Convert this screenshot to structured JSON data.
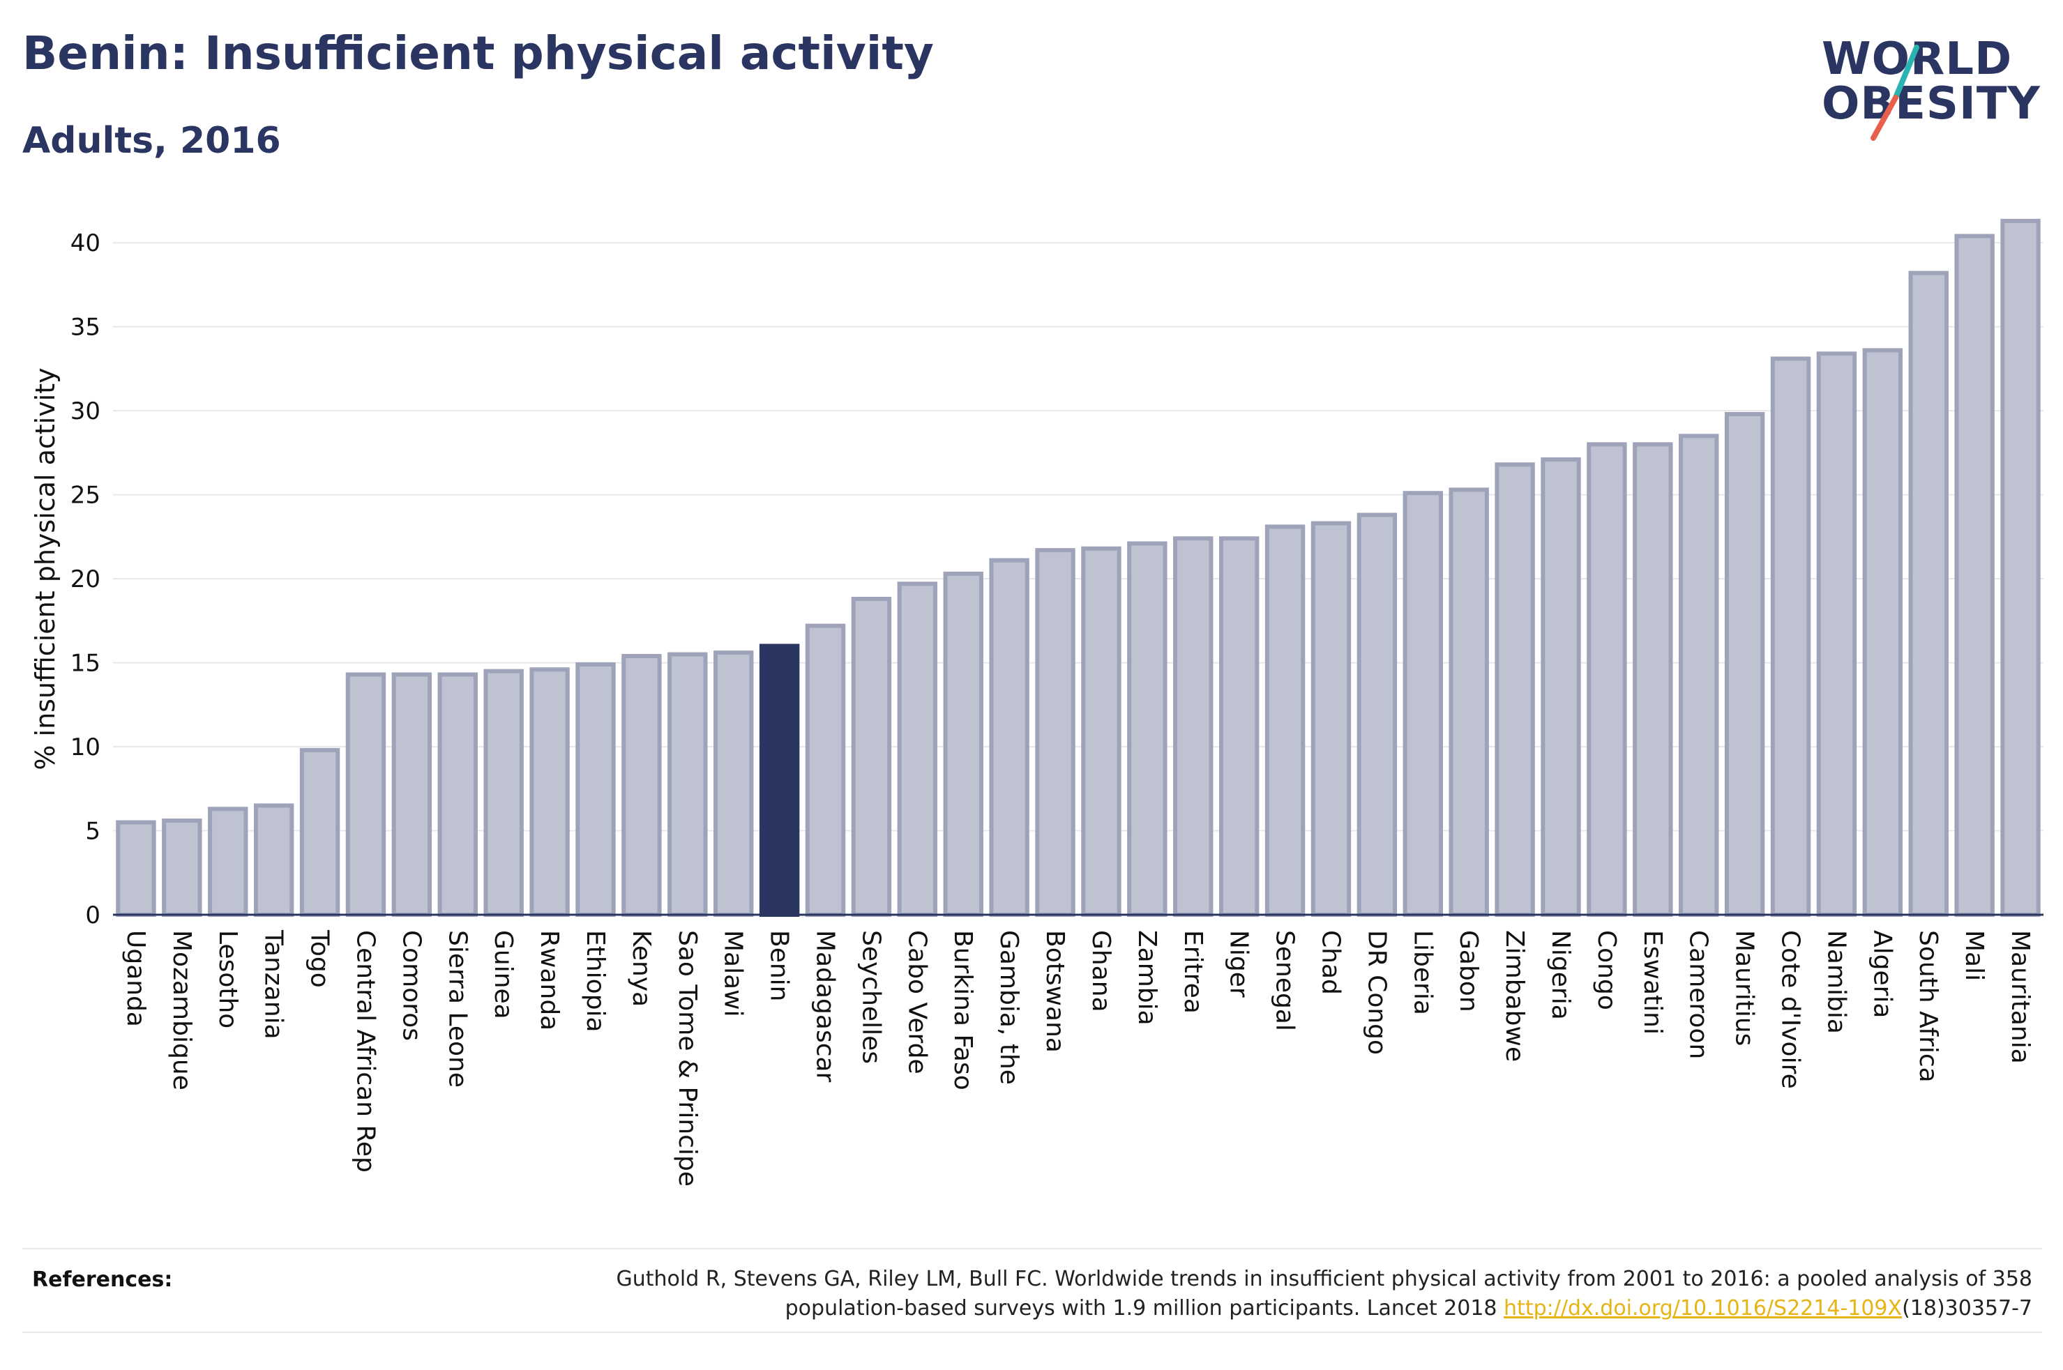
{
  "header": {
    "title": "Benin: Insufficient physical activity",
    "subtitle": "Adults, 2016"
  },
  "logo": {
    "line1": "WORLD",
    "line2": "OBESITY",
    "accent_colors": [
      "#2ab3b1",
      "#e8604c"
    ]
  },
  "references": {
    "label": "References:",
    "text_before_link": "Guthold R, Stevens GA, Riley LM, Bull FC. Worldwide trends in insufficient physical activity from 2001 to 2016: a pooled analysis of 358 population-based surveys with 1.9 million participants. Lancet 2018 ",
    "link_text": "http://dx.doi.org/10.1016/S2214-109X",
    "text_after_link": "(18)30357-7"
  },
  "colors": {
    "bar_fill": "#bfc3d1",
    "bar_stroke": "#9ea3b9",
    "highlight_fill": "#2b3561",
    "text": "#2b3561",
    "grid": "#e8e8e8"
  },
  "chart_data": {
    "type": "bar",
    "title": "Benin: Insufficient physical activity",
    "subtitle": "Adults, 2016",
    "xlabel": "",
    "ylabel": "% insufficient physical activity",
    "ylim": [
      0,
      42
    ],
    "yticks": [
      0,
      5,
      10,
      15,
      20,
      25,
      30,
      35,
      40
    ],
    "grid": true,
    "highlight": "Benin",
    "categories": [
      "Uganda",
      "Mozambique",
      "Lesotho",
      "Tanzania",
      "Togo",
      "Central African Rep",
      "Comoros",
      "Sierra Leone",
      "Guinea",
      "Rwanda",
      "Ethiopia",
      "Kenya",
      "Sao Tome & Principe",
      "Malawi",
      "Benin",
      "Madagascar",
      "Seychelles",
      "Cabo Verde",
      "Burkina Faso",
      "Gambia, the",
      "Botswana",
      "Ghana",
      "Zambia",
      "Eritrea",
      "Niger",
      "Senegal",
      "Chad",
      "DR Congo",
      "Liberia",
      "Gabon",
      "Zimbabwe",
      "Nigeria",
      "Congo",
      "Eswatini",
      "Cameroon",
      "Mauritius",
      "Cote d'Ivoire",
      "Namibia",
      "Algeria",
      "South Africa",
      "Mali",
      "Mauritania"
    ],
    "values": [
      5.5,
      5.6,
      6.3,
      6.5,
      9.8,
      14.3,
      14.3,
      14.3,
      14.5,
      14.6,
      14.9,
      15.4,
      15.5,
      15.6,
      16.0,
      17.2,
      18.8,
      19.7,
      20.3,
      21.1,
      21.7,
      21.8,
      22.1,
      22.4,
      22.4,
      23.1,
      23.3,
      23.8,
      25.1,
      25.3,
      26.8,
      27.1,
      28.0,
      28.0,
      28.5,
      29.8,
      33.1,
      33.4,
      33.6,
      38.2,
      40.4,
      41.3
    ]
  }
}
